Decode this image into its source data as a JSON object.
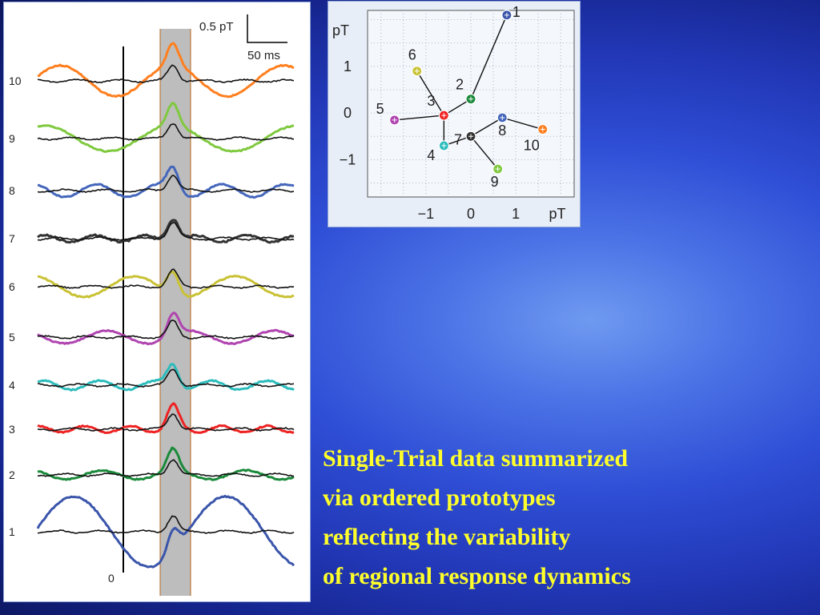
{
  "waveform_panel": {
    "scale_bar_amplitude": "0.5 pT",
    "scale_bar_time": "50 ms",
    "zero_label": "0",
    "trial_labels": [
      "10",
      "9",
      "8",
      "7",
      "6",
      "5",
      "4",
      "3",
      "2",
      "1"
    ]
  },
  "caption": {
    "lines": [
      "Single-Trial data summarized",
      "via ordered prototypes",
      "reflecting the variability",
      "of regional response dynamics"
    ],
    "color": "#ffff2a"
  },
  "chart_data": [
    {
      "type": "line",
      "title": "",
      "description_units": "pT over time",
      "series": [
        {
          "label": "10",
          "color": "#ff7f1f"
        },
        {
          "label": "9",
          "color": "#7fc93f"
        },
        {
          "label": "8",
          "color": "#4466bb"
        },
        {
          "label": "7",
          "color": "#333333"
        },
        {
          "label": "6",
          "color": "#c9c235"
        },
        {
          "label": "5",
          "color": "#b044b0"
        },
        {
          "label": "4",
          "color": "#2cbcbc"
        },
        {
          "label": "3",
          "color": "#ee2222"
        },
        {
          "label": "2",
          "color": "#1a8a3a"
        },
        {
          "label": "1",
          "color": "#3a55aa"
        }
      ],
      "highlight_window_color": "#bdbdbd",
      "reference_trace_color": "#111111"
    },
    {
      "type": "scatter",
      "xlabel": "pT",
      "ylabel": "pT",
      "xlim": [
        -2.3,
        2.3
      ],
      "ylim": [
        -1.8,
        2.2
      ],
      "x_ticks": [
        "−1",
        "0",
        "1"
      ],
      "y_ticks": [
        "1",
        "0",
        "−1"
      ],
      "grid": true,
      "points": [
        {
          "label": "1",
          "x": 0.8,
          "y": 2.1,
          "color": "#3a55aa"
        },
        {
          "label": "2",
          "x": 0.0,
          "y": 0.3,
          "color": "#1a8a3a"
        },
        {
          "label": "3",
          "x": -0.6,
          "y": -0.05,
          "color": "#ee2222"
        },
        {
          "label": "4",
          "x": -0.6,
          "y": -0.7,
          "color": "#2cbcbc"
        },
        {
          "label": "5",
          "x": -1.7,
          "y": -0.15,
          "color": "#b044b0"
        },
        {
          "label": "6",
          "x": -1.2,
          "y": 0.9,
          "color": "#c9c235"
        },
        {
          "label": "7",
          "x": 0.0,
          "y": -0.5,
          "color": "#333333"
        },
        {
          "label": "8",
          "x": 0.7,
          "y": -0.1,
          "color": "#4466bb"
        },
        {
          "label": "9",
          "x": 0.6,
          "y": -1.2,
          "color": "#7fc93f"
        },
        {
          "label": "10",
          "x": 1.6,
          "y": -0.35,
          "color": "#ff7f1f"
        }
      ],
      "edges": [
        [
          "1",
          "2"
        ],
        [
          "2",
          "3"
        ],
        [
          "3",
          "4"
        ],
        [
          "3",
          "5"
        ],
        [
          "3",
          "6"
        ],
        [
          "4",
          "7"
        ],
        [
          "7",
          "8"
        ],
        [
          "7",
          "9"
        ],
        [
          "8",
          "10"
        ]
      ]
    }
  ]
}
